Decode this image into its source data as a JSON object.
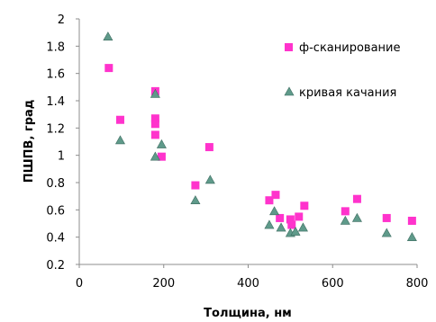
{
  "chart_data": {
    "type": "scatter",
    "title": "",
    "xlabel": "Толщина, нм",
    "ylabel": "ПШПВ, град",
    "xlim": [
      0,
      800
    ],
    "ylim": [
      0.2,
      2
    ],
    "xticks": [
      0,
      200,
      400,
      600,
      800
    ],
    "yticks": [
      0.2,
      0.4,
      0.6,
      0.8,
      1,
      1.2,
      1.4,
      1.6,
      1.8,
      2
    ],
    "xtick_labels": [
      "0",
      "200",
      "400",
      "600",
      "800"
    ],
    "ytick_labels": [
      "0.2",
      "0.4",
      "0.6",
      "0.8",
      "1",
      "1.2",
      "1.4",
      "1.6",
      "1.8",
      "2"
    ],
    "grid": false,
    "legend_position": "right",
    "series": [
      {
        "name": "ф-сканирование",
        "marker": "square",
        "color": "#ff33cc",
        "points": [
          [
            70,
            1.64
          ],
          [
            97,
            1.26
          ],
          [
            180,
            1.47
          ],
          [
            180,
            1.27
          ],
          [
            180,
            1.23
          ],
          [
            180,
            1.15
          ],
          [
            195,
            0.99
          ],
          [
            275,
            0.78
          ],
          [
            308,
            1.06
          ],
          [
            450,
            0.67
          ],
          [
            465,
            0.71
          ],
          [
            475,
            0.54
          ],
          [
            500,
            0.53
          ],
          [
            503,
            0.49
          ],
          [
            520,
            0.55
          ],
          [
            533,
            0.63
          ],
          [
            630,
            0.59
          ],
          [
            658,
            0.68
          ],
          [
            728,
            0.54
          ],
          [
            788,
            0.52
          ]
        ]
      },
      {
        "name": "кривая качания",
        "marker": "triangle",
        "color": "#5f9a8a",
        "points": [
          [
            68,
            1.87
          ],
          [
            97,
            1.11
          ],
          [
            180,
            1.45
          ],
          [
            180,
            0.99
          ],
          [
            195,
            1.08
          ],
          [
            275,
            0.67
          ],
          [
            310,
            0.82
          ],
          [
            450,
            0.49
          ],
          [
            462,
            0.59
          ],
          [
            478,
            0.47
          ],
          [
            500,
            0.43
          ],
          [
            512,
            0.44
          ],
          [
            530,
            0.47
          ],
          [
            630,
            0.52
          ],
          [
            658,
            0.54
          ],
          [
            728,
            0.43
          ],
          [
            788,
            0.4
          ]
        ]
      }
    ]
  }
}
